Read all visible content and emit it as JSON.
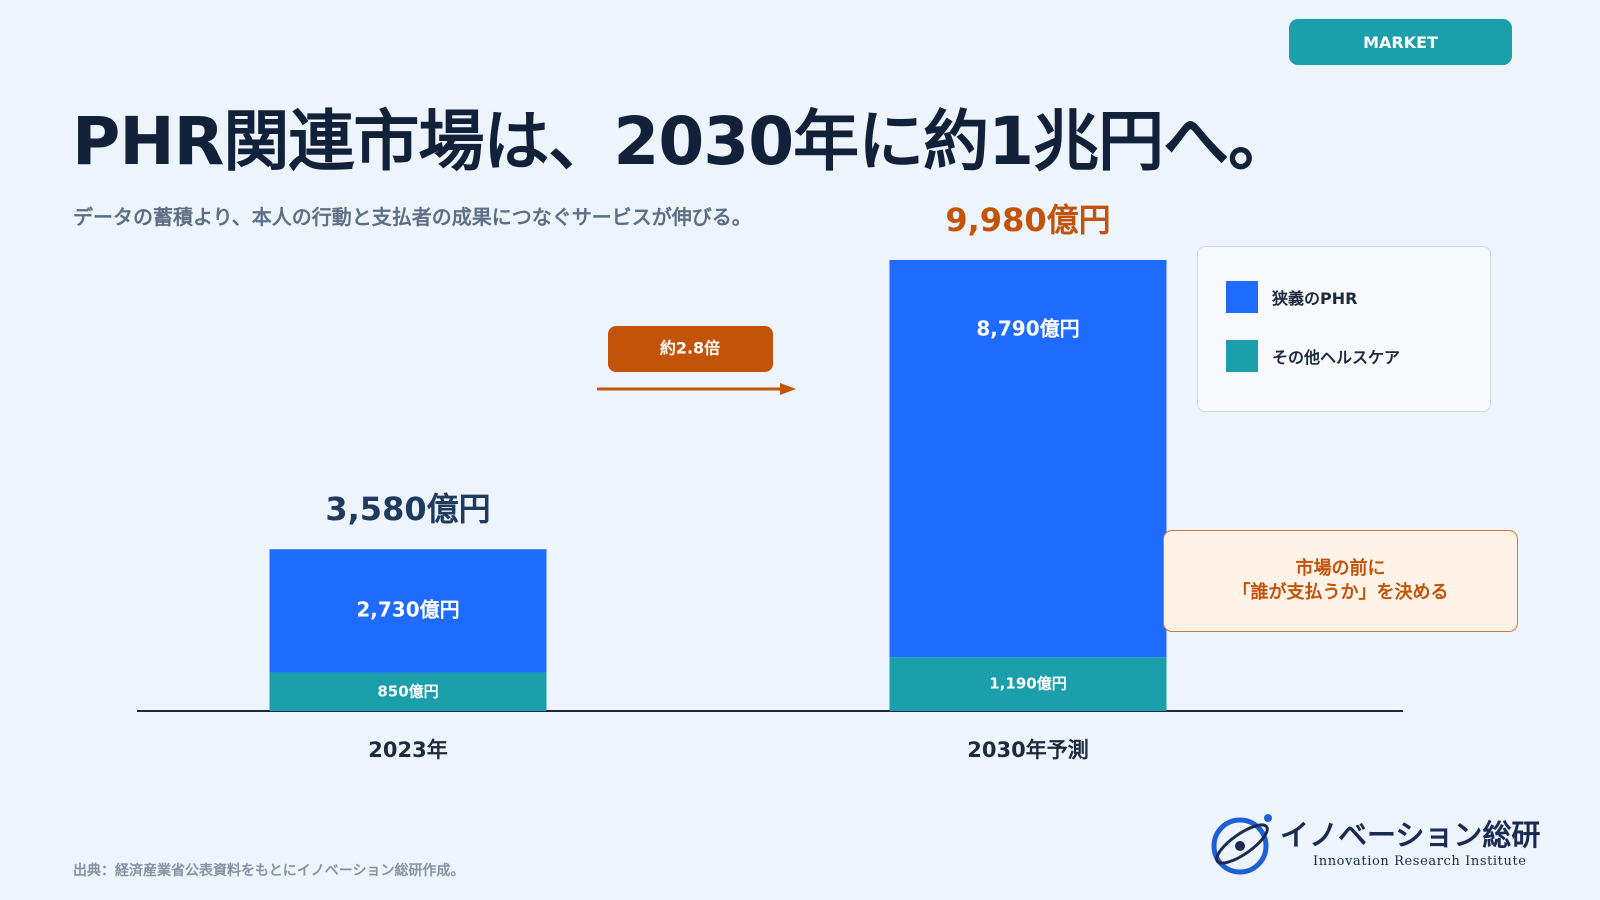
{
  "header": {
    "tag_label": "MARKET",
    "title": "PHR関連市場は、2030年に約1兆円へ。",
    "subtitle": "データの蓄積より、本人の行動と支払者の成果につなぐサービスが伸びる。"
  },
  "colors": {
    "tag": "#1b9fab",
    "narrow_phr": "#1f6bff",
    "other_healthcare": "#1b9fab",
    "accent": "#c4530a",
    "total_2023": "#1e3a5f"
  },
  "chart_data": {
    "type": "bar",
    "stacked": true,
    "categories": [
      "2023年",
      "2030年予測"
    ],
    "series": [
      {
        "name": "その他ヘルスケア",
        "values": [
          850,
          1190
        ],
        "labels": [
          "850億円",
          "1,190億円"
        ]
      },
      {
        "name": "狭義のPHR",
        "values": [
          2730,
          8790
        ],
        "labels": [
          "2,730億円",
          "8,790億円"
        ]
      }
    ],
    "totals": [
      3580,
      9980
    ],
    "total_labels": [
      "3,580億円",
      "9,980億円"
    ],
    "unit": "億円",
    "ylim": [
      0,
      10400
    ],
    "growth_label": "約2.8倍",
    "legend_position": "right"
  },
  "legend": {
    "items": [
      {
        "label": "狭義のPHR",
        "color": "#1f6bff"
      },
      {
        "label": "その他ヘルスケア",
        "color": "#1b9fab"
      }
    ]
  },
  "callout": {
    "line1": "市場の前に",
    "line2": "「誰が支払うか」を決める"
  },
  "source": "出典：経済産業省公表資料をもとにイノベーション総研作成。",
  "logo": {
    "name": "イノベーション総研",
    "subtitle": "Innovation Research Institute"
  }
}
